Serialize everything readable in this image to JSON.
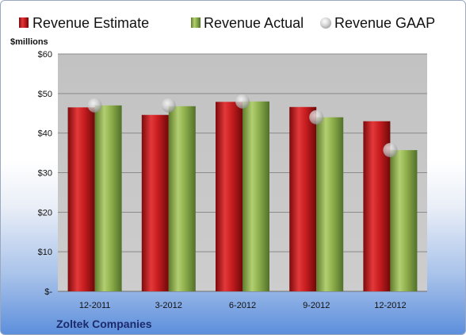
{
  "chart_data": {
    "type": "bar",
    "title": "",
    "ylabel": "$millions",
    "xlabel": "",
    "categories": [
      "12-2011",
      "3-2012",
      "6-2012",
      "9-2012",
      "12-2012"
    ],
    "series": [
      {
        "name": "Revenue Estimate",
        "kind": "bar",
        "color": "#c0181c",
        "values": [
          46.5,
          44.6,
          47.9,
          46.6,
          43.0
        ]
      },
      {
        "name": "Revenue Actual",
        "kind": "bar",
        "color": "#8fb04c",
        "values": [
          47.0,
          46.8,
          48.0,
          44.0,
          35.7
        ]
      },
      {
        "name": "Revenue GAAP",
        "kind": "marker",
        "color": "#c8c8c8",
        "values": [
          47.0,
          47.0,
          48.0,
          44.0,
          35.7
        ]
      }
    ],
    "ylim": [
      0,
      60
    ],
    "yticks": [
      0,
      10,
      20,
      30,
      40,
      50,
      60
    ],
    "ytick_labels": [
      "$-",
      "$10",
      "$20",
      "$30",
      "$40",
      "$50",
      "$60"
    ],
    "grid": true,
    "legend_position": "top",
    "plot_background": "#c3c3c3"
  },
  "company_name": "Zoltek Companies"
}
